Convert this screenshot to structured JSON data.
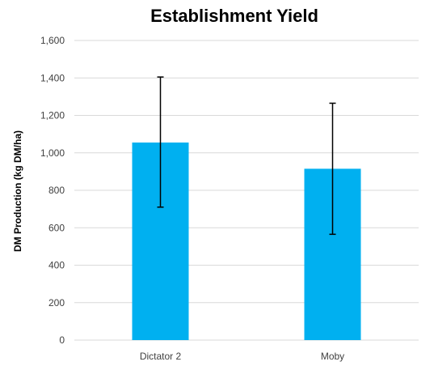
{
  "chart_data": {
    "type": "bar",
    "title": "Establishment Yield",
    "xlabel": "",
    "ylabel": "DM Production (kg DM/ha)",
    "categories": [
      "Dictator 2",
      "Moby"
    ],
    "values": [
      1055,
      915
    ],
    "error": [
      [
        710,
        1405
      ],
      [
        565,
        1265
      ]
    ],
    "ylim": [
      0,
      1600
    ],
    "yticks": [
      0,
      200,
      400,
      600,
      800,
      1000,
      1200,
      1400,
      1600
    ],
    "ytick_labels": [
      "0",
      "200",
      "400",
      "600",
      "800",
      "1,000",
      "1,200",
      "1,400",
      "1,600"
    ],
    "grid": true,
    "legend": "none",
    "bar_color": "#00b0f0"
  }
}
